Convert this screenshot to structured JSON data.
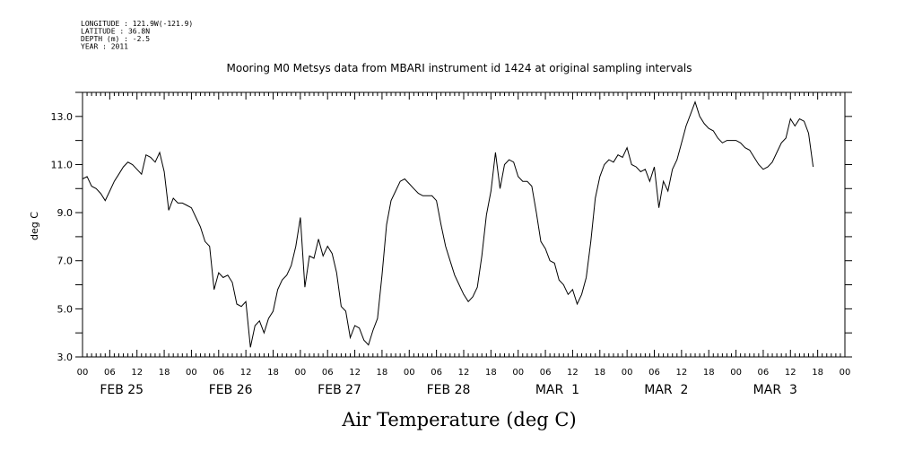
{
  "header": {
    "meta_lines": [
      "LONGITUDE : 121.9W(-121.9)",
      "LATITUDE : 36.8N",
      "DEPTH (m) : -2.5",
      "YEAR : 2011"
    ]
  },
  "chart_data": {
    "type": "line",
    "title": "Mooring M0 Metsys data from MBARI instrument id 1424 at original sampling intervals",
    "xlabel": "Air Temperature (deg C)",
    "ylabel": "deg C",
    "ylim": [
      3.0,
      14.0
    ],
    "yticks": [
      3.0,
      5.0,
      7.0,
      9.0,
      11.0,
      13.0
    ],
    "ytick_labels": [
      "3.0",
      "5.0",
      "7.0",
      "9.0",
      "11.0",
      "13.0"
    ],
    "xlim": [
      "2011-02-25T00:00",
      "2011-03-04T00:00"
    ],
    "hour_tick_labels": [
      "00",
      "06",
      "12",
      "18",
      "00",
      "06",
      "12",
      "18",
      "00",
      "06",
      "12",
      "18",
      "00",
      "06",
      "12",
      "18",
      "00",
      "06",
      "12",
      "18",
      "00",
      "06",
      "12",
      "18",
      "00",
      "06",
      "12",
      "18",
      "00"
    ],
    "day_labels": [
      "FEB 25",
      "FEB 26",
      "FEB 27",
      "FEB 28",
      "MAR  1",
      "MAR  2",
      "MAR  3"
    ],
    "series": [
      {
        "values": [
          [
            "2011-02-25T00:00",
            10.4
          ],
          [
            "2011-02-25T01:00",
            10.5
          ],
          [
            "2011-02-25T02:00",
            10.1
          ],
          [
            "2011-02-25T03:00",
            10.0
          ],
          [
            "2011-02-25T04:00",
            9.8
          ],
          [
            "2011-02-25T05:00",
            9.5
          ],
          [
            "2011-02-25T06:00",
            9.9
          ],
          [
            "2011-02-25T07:00",
            10.3
          ],
          [
            "2011-02-25T08:00",
            10.6
          ],
          [
            "2011-02-25T09:00",
            10.9
          ],
          [
            "2011-02-25T10:00",
            11.1
          ],
          [
            "2011-02-25T11:00",
            11.0
          ],
          [
            "2011-02-25T12:00",
            10.8
          ],
          [
            "2011-02-25T13:00",
            10.6
          ],
          [
            "2011-02-25T14:00",
            11.4
          ],
          [
            "2011-02-25T15:00",
            11.3
          ],
          [
            "2011-02-25T16:00",
            11.1
          ],
          [
            "2011-02-25T17:00",
            11.5
          ],
          [
            "2011-02-25T18:00",
            10.7
          ],
          [
            "2011-02-25T19:00",
            9.1
          ],
          [
            "2011-02-25T20:00",
            9.6
          ],
          [
            "2011-02-25T21:00",
            9.4
          ],
          [
            "2011-02-25T22:00",
            9.4
          ],
          [
            "2011-02-25T23:00",
            9.3
          ],
          [
            "2011-02-26T00:00",
            9.2
          ],
          [
            "2011-02-26T01:00",
            8.8
          ],
          [
            "2011-02-26T02:00",
            8.4
          ],
          [
            "2011-02-26T03:00",
            7.8
          ],
          [
            "2011-02-26T04:00",
            7.6
          ],
          [
            "2011-02-26T05:00",
            5.8
          ],
          [
            "2011-02-26T06:00",
            6.5
          ],
          [
            "2011-02-26T07:00",
            6.3
          ],
          [
            "2011-02-26T08:00",
            6.4
          ],
          [
            "2011-02-26T09:00",
            6.1
          ],
          [
            "2011-02-26T10:00",
            5.2
          ],
          [
            "2011-02-26T11:00",
            5.1
          ],
          [
            "2011-02-26T12:00",
            5.3
          ],
          [
            "2011-02-26T13:00",
            3.4
          ],
          [
            "2011-02-26T14:00",
            4.3
          ],
          [
            "2011-02-26T15:00",
            4.5
          ],
          [
            "2011-02-26T16:00",
            4.0
          ],
          [
            "2011-02-26T17:00",
            4.6
          ],
          [
            "2011-02-26T18:00",
            4.9
          ],
          [
            "2011-02-26T19:00",
            5.8
          ],
          [
            "2011-02-26T20:00",
            6.2
          ],
          [
            "2011-02-26T21:00",
            6.4
          ],
          [
            "2011-02-26T22:00",
            6.8
          ],
          [
            "2011-02-26T23:00",
            7.6
          ],
          [
            "2011-02-27T00:00",
            8.8
          ],
          [
            "2011-02-27T01:00",
            5.9
          ],
          [
            "2011-02-27T02:00",
            7.2
          ],
          [
            "2011-02-27T03:00",
            7.1
          ],
          [
            "2011-02-27T04:00",
            7.9
          ],
          [
            "2011-02-27T05:00",
            7.2
          ],
          [
            "2011-02-27T06:00",
            7.6
          ],
          [
            "2011-02-27T07:00",
            7.3
          ],
          [
            "2011-02-27T08:00",
            6.5
          ],
          [
            "2011-02-27T09:00",
            5.1
          ],
          [
            "2011-02-27T10:00",
            4.9
          ],
          [
            "2011-02-27T11:00",
            3.8
          ],
          [
            "2011-02-27T12:00",
            4.3
          ],
          [
            "2011-02-27T13:00",
            4.2
          ],
          [
            "2011-02-27T14:00",
            3.7
          ],
          [
            "2011-02-27T15:00",
            3.5
          ],
          [
            "2011-02-27T16:00",
            4.1
          ],
          [
            "2011-02-27T17:00",
            4.6
          ],
          [
            "2011-02-27T18:00",
            6.4
          ],
          [
            "2011-02-27T19:00",
            8.5
          ],
          [
            "2011-02-27T20:00",
            9.5
          ],
          [
            "2011-02-27T21:00",
            9.9
          ],
          [
            "2011-02-27T22:00",
            10.3
          ],
          [
            "2011-02-27T23:00",
            10.4
          ],
          [
            "2011-02-28T00:00",
            10.2
          ],
          [
            "2011-02-28T01:00",
            10.0
          ],
          [
            "2011-02-28T02:00",
            9.8
          ],
          [
            "2011-02-28T03:00",
            9.7
          ],
          [
            "2011-02-28T04:00",
            9.7
          ],
          [
            "2011-02-28T05:00",
            9.7
          ],
          [
            "2011-02-28T06:00",
            9.5
          ],
          [
            "2011-02-28T07:00",
            8.5
          ],
          [
            "2011-02-28T08:00",
            7.6
          ],
          [
            "2011-02-28T09:00",
            7.0
          ],
          [
            "2011-02-28T10:00",
            6.4
          ],
          [
            "2011-02-28T11:00",
            6.0
          ],
          [
            "2011-02-28T12:00",
            5.6
          ],
          [
            "2011-02-28T13:00",
            5.3
          ],
          [
            "2011-02-28T14:00",
            5.5
          ],
          [
            "2011-02-28T15:00",
            5.9
          ],
          [
            "2011-02-28T16:00",
            7.2
          ],
          [
            "2011-02-28T17:00",
            8.9
          ],
          [
            "2011-02-28T18:00",
            9.9
          ],
          [
            "2011-02-28T19:00",
            11.5
          ],
          [
            "2011-02-28T20:00",
            10.0
          ],
          [
            "2011-02-28T21:00",
            11.0
          ],
          [
            "2011-02-28T22:00",
            11.2
          ],
          [
            "2011-02-28T23:00",
            11.1
          ],
          [
            "2011-03-01T00:00",
            10.5
          ],
          [
            "2011-03-01T01:00",
            10.3
          ],
          [
            "2011-03-01T02:00",
            10.3
          ],
          [
            "2011-03-01T03:00",
            10.1
          ],
          [
            "2011-03-01T04:00",
            9.0
          ],
          [
            "2011-03-01T05:00",
            7.8
          ],
          [
            "2011-03-01T06:00",
            7.5
          ],
          [
            "2011-03-01T07:00",
            7.0
          ],
          [
            "2011-03-01T08:00",
            6.9
          ],
          [
            "2011-03-01T09:00",
            6.2
          ],
          [
            "2011-03-01T10:00",
            6.0
          ],
          [
            "2011-03-01T11:00",
            5.6
          ],
          [
            "2011-03-01T12:00",
            5.8
          ],
          [
            "2011-03-01T13:00",
            5.2
          ],
          [
            "2011-03-01T14:00",
            5.6
          ],
          [
            "2011-03-01T15:00",
            6.3
          ],
          [
            "2011-03-01T16:00",
            7.8
          ],
          [
            "2011-03-01T17:00",
            9.6
          ],
          [
            "2011-03-01T18:00",
            10.5
          ],
          [
            "2011-03-01T19:00",
            11.0
          ],
          [
            "2011-03-01T20:00",
            11.2
          ],
          [
            "2011-03-01T21:00",
            11.1
          ],
          [
            "2011-03-01T22:00",
            11.4
          ],
          [
            "2011-03-01T23:00",
            11.3
          ],
          [
            "2011-03-02T00:00",
            11.7
          ],
          [
            "2011-03-02T01:00",
            11.0
          ],
          [
            "2011-03-02T02:00",
            10.9
          ],
          [
            "2011-03-02T03:00",
            10.7
          ],
          [
            "2011-03-02T04:00",
            10.8
          ],
          [
            "2011-03-02T05:00",
            10.3
          ],
          [
            "2011-03-02T06:00",
            10.9
          ],
          [
            "2011-03-02T07:00",
            9.2
          ],
          [
            "2011-03-02T08:00",
            10.3
          ],
          [
            "2011-03-02T09:00",
            9.9
          ],
          [
            "2011-03-02T10:00",
            10.8
          ],
          [
            "2011-03-02T11:00",
            11.2
          ],
          [
            "2011-03-02T12:00",
            11.9
          ],
          [
            "2011-03-02T13:00",
            12.6
          ],
          [
            "2011-03-02T14:00",
            13.1
          ],
          [
            "2011-03-02T15:00",
            13.6
          ],
          [
            "2011-03-02T16:00",
            13.0
          ],
          [
            "2011-03-02T17:00",
            12.7
          ],
          [
            "2011-03-02T18:00",
            12.5
          ],
          [
            "2011-03-02T19:00",
            12.4
          ],
          [
            "2011-03-02T20:00",
            12.1
          ],
          [
            "2011-03-02T21:00",
            11.9
          ],
          [
            "2011-03-02T22:00",
            12.0
          ],
          [
            "2011-03-02T23:00",
            12.0
          ],
          [
            "2011-03-03T00:00",
            12.0
          ],
          [
            "2011-03-03T01:00",
            11.9
          ],
          [
            "2011-03-03T02:00",
            11.7
          ],
          [
            "2011-03-03T03:00",
            11.6
          ],
          [
            "2011-03-03T04:00",
            11.3
          ],
          [
            "2011-03-03T05:00",
            11.0
          ],
          [
            "2011-03-03T06:00",
            10.8
          ],
          [
            "2011-03-03T07:00",
            10.9
          ],
          [
            "2011-03-03T08:00",
            11.1
          ],
          [
            "2011-03-03T09:00",
            11.5
          ],
          [
            "2011-03-03T10:00",
            11.9
          ],
          [
            "2011-03-03T11:00",
            12.1
          ],
          [
            "2011-03-03T12:00",
            12.9
          ],
          [
            "2011-03-03T13:00",
            12.6
          ],
          [
            "2011-03-03T14:00",
            12.9
          ],
          [
            "2011-03-03T15:00",
            12.8
          ],
          [
            "2011-03-03T16:00",
            12.3
          ],
          [
            "2011-03-03T17:00",
            10.9
          ]
        ]
      }
    ]
  }
}
